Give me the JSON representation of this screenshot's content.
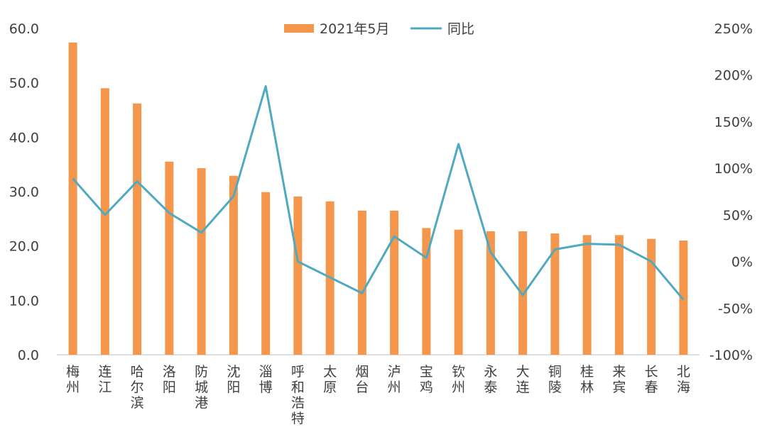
{
  "chart_data": {
    "type": "bar+line",
    "categories": [
      "梅州",
      "连江",
      "哈尔滨",
      "洛阳",
      "防城港",
      "沈阳",
      "淄博",
      "呼和浩特",
      "太原",
      "烟台",
      "泸州",
      "宝鸡",
      "钦州",
      "永泰",
      "大连",
      "铜陵",
      "桂林",
      "来宾",
      "长春",
      "北海"
    ],
    "series": [
      {
        "name": "2021年5月",
        "type": "bar",
        "axis": "left",
        "color": "#F4964C",
        "values": [
          57.4,
          49.0,
          46.2,
          35.5,
          34.3,
          32.9,
          29.9,
          29.1,
          28.2,
          26.5,
          26.5,
          23.3,
          23.0,
          22.7,
          22.7,
          22.3,
          22.0,
          22.0,
          21.3,
          21.0
        ]
      },
      {
        "name": "同比",
        "type": "line",
        "axis": "right",
        "color": "#4FAAC0",
        "values": [
          89,
          50,
          86,
          52,
          31,
          70,
          188,
          0,
          -17,
          -34,
          27,
          4,
          126,
          10,
          -36,
          13,
          19,
          18,
          0,
          -41
        ]
      }
    ],
    "left_axis": {
      "ylim": [
        0,
        60
      ],
      "ticks": [
        "0.0",
        "10.0",
        "20.0",
        "30.0",
        "40.0",
        "50.0",
        "60.0"
      ]
    },
    "right_axis": {
      "ylim": [
        -100,
        250
      ],
      "ticks": [
        "-100%",
        "-50%",
        "0%",
        "50%",
        "100%",
        "150%",
        "200%",
        "250%"
      ]
    },
    "legend": "top-center",
    "grid": false
  }
}
